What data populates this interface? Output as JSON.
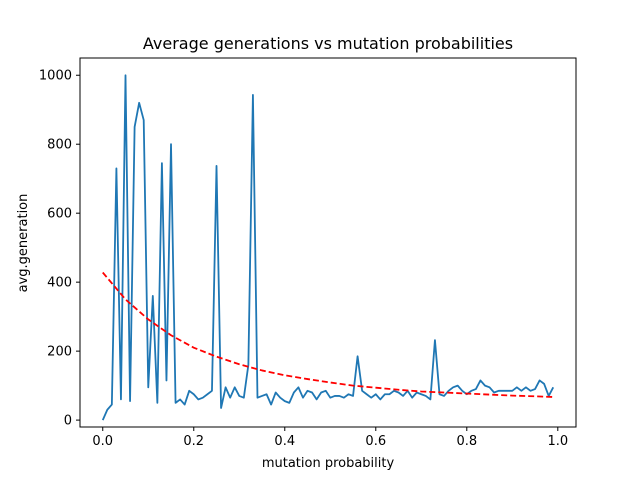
{
  "chart_data": {
    "type": "line",
    "title": "Average generations vs mutation probabilities",
    "xlabel": "mutation probability",
    "ylabel": "avg.generation",
    "xlim": [
      -0.05,
      1.04
    ],
    "ylim": [
      -20,
      1050
    ],
    "x_ticks": [
      0.0,
      0.2,
      0.4,
      0.6,
      0.8,
      1.0
    ],
    "x_tick_labels": [
      "0.0",
      "0.2",
      "0.4",
      "0.6",
      "0.8",
      "1.0"
    ],
    "y_ticks": [
      0,
      200,
      400,
      600,
      800,
      1000
    ],
    "y_tick_labels": [
      "0",
      "200",
      "400",
      "600",
      "800",
      "1000"
    ],
    "grid": false,
    "series": [
      {
        "style": "solid",
        "color": "#1f77b4",
        "x": [
          0.0,
          0.01,
          0.02,
          0.03,
          0.04,
          0.05,
          0.06,
          0.07,
          0.08,
          0.09,
          0.1,
          0.11,
          0.12,
          0.13,
          0.14,
          0.15,
          0.16,
          0.17,
          0.18,
          0.19,
          0.2,
          0.21,
          0.22,
          0.23,
          0.24,
          0.25,
          0.26,
          0.27,
          0.28,
          0.29,
          0.3,
          0.31,
          0.32,
          0.33,
          0.34,
          0.35,
          0.36,
          0.37,
          0.38,
          0.39,
          0.4,
          0.41,
          0.42,
          0.43,
          0.44,
          0.45,
          0.46,
          0.47,
          0.48,
          0.49,
          0.5,
          0.51,
          0.52,
          0.53,
          0.54,
          0.55,
          0.56,
          0.57,
          0.58,
          0.59,
          0.6,
          0.61,
          0.62,
          0.63,
          0.64,
          0.65,
          0.66,
          0.67,
          0.68,
          0.69,
          0.7,
          0.71,
          0.72,
          0.73,
          0.74,
          0.75,
          0.76,
          0.77,
          0.78,
          0.79,
          0.8,
          0.81,
          0.82,
          0.83,
          0.84,
          0.85,
          0.86,
          0.87,
          0.88,
          0.89,
          0.9,
          0.91,
          0.92,
          0.93,
          0.94,
          0.95,
          0.96,
          0.97,
          0.98,
          0.99
        ],
        "values": [
          0,
          30,
          45,
          730,
          60,
          1000,
          55,
          850,
          920,
          870,
          95,
          360,
          50,
          745,
          115,
          800,
          50,
          60,
          45,
          85,
          75,
          60,
          65,
          75,
          85,
          737,
          35,
          95,
          65,
          95,
          70,
          65,
          160,
          943,
          65,
          70,
          75,
          45,
          80,
          65,
          55,
          50,
          80,
          95,
          65,
          85,
          80,
          60,
          80,
          85,
          65,
          70,
          70,
          65,
          75,
          70,
          185,
          85,
          75,
          65,
          75,
          60,
          75,
          75,
          85,
          80,
          70,
          85,
          65,
          80,
          75,
          70,
          60,
          232,
          75,
          70,
          85,
          95,
          100,
          85,
          75,
          85,
          90,
          115,
          100,
          95,
          80,
          85,
          85,
          85,
          85,
          95,
          85,
          95,
          85,
          90,
          115,
          105,
          70,
          95
        ]
      },
      {
        "style": "dashed",
        "color": "#ff0000",
        "x": [
          0.0,
          0.05,
          0.1,
          0.15,
          0.2,
          0.25,
          0.3,
          0.35,
          0.4,
          0.45,
          0.5,
          0.55,
          0.6,
          0.65,
          0.7,
          0.75,
          0.8,
          0.85,
          0.9,
          0.95,
          0.99
        ],
        "values": [
          428,
          350,
          292,
          246,
          210,
          184,
          162,
          144,
          130,
          119,
          109,
          100,
          94,
          88,
          83,
          80,
          77,
          74,
          71,
          69,
          67
        ]
      }
    ]
  }
}
